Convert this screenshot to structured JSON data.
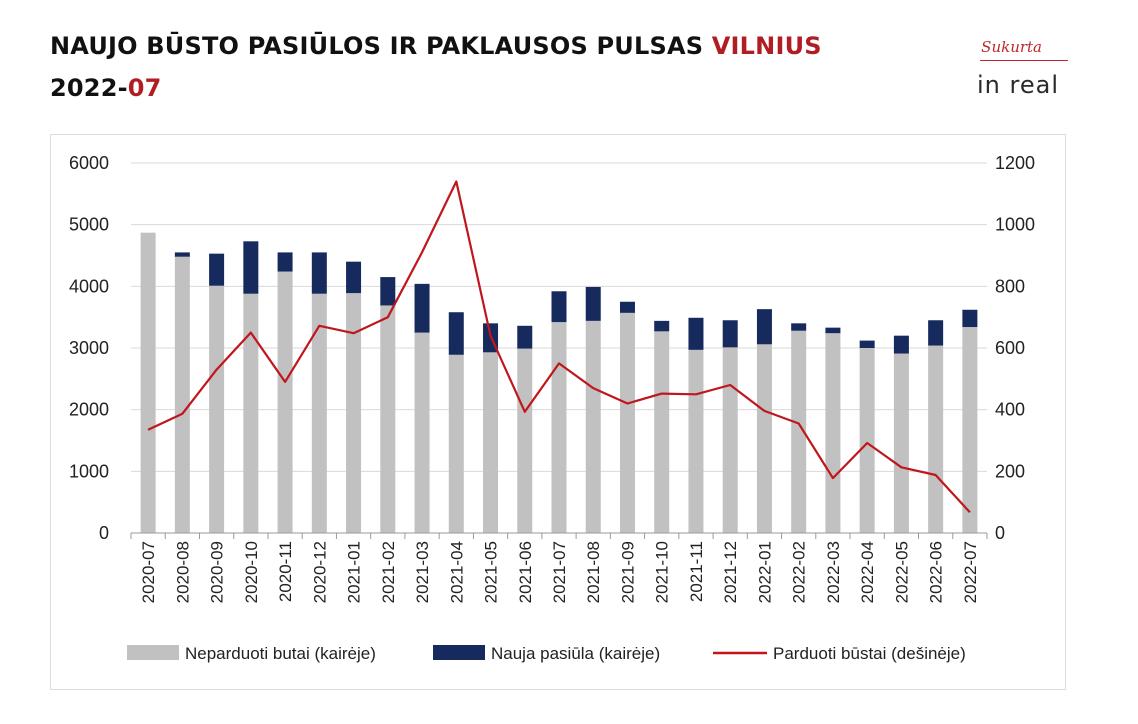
{
  "header": {
    "title_main": "NAUJO BŪSTO PASIŪLOS IR PAKLAUSOS PULSAS ",
    "title_city": "VILNIUS",
    "period_year": "2022-",
    "period_month": "07"
  },
  "logo": {
    "top": "Sukurta",
    "main": "in real"
  },
  "colors": {
    "accent": "#b01e23",
    "unsold": "#c1c1c1",
    "new": "#172a5e",
    "sold": "#c0161c"
  },
  "chart_data": {
    "type": "bar",
    "categories": [
      "2020-07",
      "2020-08",
      "2020-09",
      "2020-10",
      "2020-11",
      "2020-12",
      "2021-01",
      "2021-02",
      "2021-03",
      "2021-04",
      "2021-05",
      "2021-06",
      "2021-07",
      "2021-08",
      "2021-09",
      "2021-10",
      "2021-11",
      "2021-12",
      "2022-01",
      "2022-02",
      "2022-03",
      "2022-04",
      "2022-05",
      "2022-06",
      "2022-07"
    ],
    "series": [
      {
        "name": "Neparduoti butai (kairėje)",
        "type": "bar",
        "axis": "left",
        "values": [
          4870,
          4480,
          4010,
          3880,
          4240,
          3880,
          3890,
          3690,
          3250,
          2890,
          2930,
          2990,
          3420,
          3440,
          3570,
          3270,
          2970,
          3010,
          3060,
          3280,
          3240,
          3000,
          2910,
          3040,
          3340
        ]
      },
      {
        "name": "Nauja pasiūla (kairėje)",
        "type": "bar",
        "axis": "left",
        "stacked": true,
        "values": [
          0,
          70,
          520,
          850,
          310,
          670,
          510,
          460,
          790,
          690,
          470,
          370,
          500,
          550,
          180,
          170,
          520,
          440,
          570,
          120,
          90,
          120,
          290,
          410,
          280
        ]
      },
      {
        "name": "Parduoti būstai (dešinėje)",
        "type": "line",
        "axis": "right",
        "values": [
          335,
          387,
          530,
          650,
          490,
          672,
          648,
          700,
          910,
          1140,
          640,
          393,
          550,
          470,
          420,
          452,
          450,
          480,
          396,
          355,
          178,
          292,
          213,
          188,
          67
        ]
      }
    ],
    "y_left": {
      "min": 0,
      "max": 6000,
      "ticks": [
        0,
        1000,
        2000,
        3000,
        4000,
        5000,
        6000
      ]
    },
    "y_right": {
      "min": 0,
      "max": 1200,
      "ticks": [
        0,
        200,
        400,
        600,
        800,
        1000,
        1200
      ]
    },
    "grid": true,
    "legend_position": "bottom"
  }
}
